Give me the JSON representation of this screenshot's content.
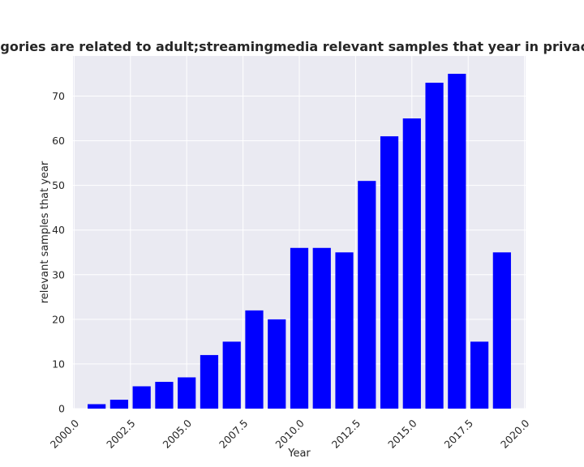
{
  "chart_data": {
    "type": "bar",
    "title": "ion categories are related to adult;streamingmedia relevant samples that year in privacy policies",
    "xlabel": "Year",
    "ylabel": "relevant samples that year",
    "x": [
      2001,
      2002,
      2003,
      2004,
      2005,
      2006,
      2007,
      2008,
      2009,
      2010,
      2011,
      2012,
      2013,
      2014,
      2015,
      2016,
      2017,
      2018,
      2019
    ],
    "values": [
      1,
      2,
      5,
      6,
      7,
      12,
      15,
      22,
      20,
      36,
      36,
      35,
      51,
      61,
      65,
      73,
      75,
      15,
      35
    ],
    "xlim": [
      1999.95,
      2020.05
    ],
    "ylim": [
      0,
      79
    ],
    "xticks": [
      2000.0,
      2002.5,
      2005.0,
      2007.5,
      2010.0,
      2012.5,
      2015.0,
      2017.5,
      2020.0
    ],
    "xtick_labels": [
      "2000.0",
      "2002.5",
      "2005.0",
      "2007.5",
      "2010.0",
      "2012.5",
      "2015.0",
      "2017.5",
      "2020.0"
    ],
    "yticks": [
      0,
      10,
      20,
      30,
      40,
      50,
      60,
      70
    ],
    "ytick_labels": [
      "0",
      "10",
      "20",
      "30",
      "40",
      "50",
      "60",
      "70"
    ],
    "bar_width": 0.8,
    "grid": true,
    "colors": {
      "bar": "#0000ff",
      "plot_background": "#eaeaf2",
      "grid": "#ffffff",
      "text": "#262626"
    }
  }
}
